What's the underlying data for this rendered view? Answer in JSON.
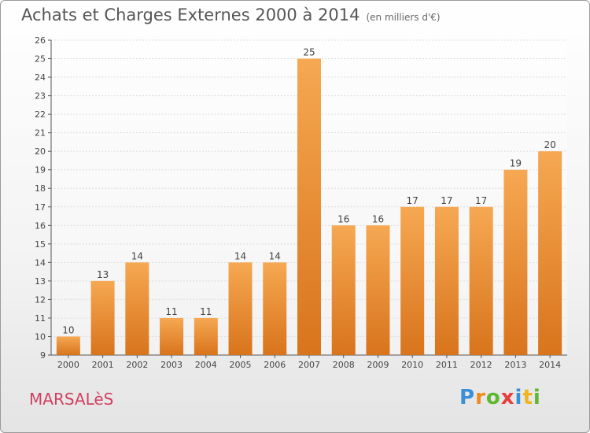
{
  "header": {
    "title": "Achats et Charges Externes 2000 à 2014",
    "subtitle": "(en milliers d'€)"
  },
  "footer": {
    "commune": "MARSALèS",
    "logo_letters": [
      "P",
      "r",
      "o",
      "x",
      "i",
      "t",
      "i"
    ],
    "logo_colors": [
      "#3a8fd6",
      "#f08a1c",
      "#5cb82f",
      "#e83c3c",
      "#3a8fd6",
      "#f0b41c",
      "#5cb82f"
    ]
  },
  "colors": {
    "bar_light": "#f6a852",
    "bar_dark": "#d8741c",
    "grid": "#dddddd",
    "axis": "#555555"
  },
  "chart_data": {
    "type": "bar",
    "title": "Achats et Charges Externes 2000 à 2014",
    "subtitle": "(en milliers d'€)",
    "categories": [
      "2000",
      "2001",
      "2002",
      "2003",
      "2004",
      "2005",
      "2006",
      "2007",
      "2008",
      "2009",
      "2010",
      "2011",
      "2012",
      "2013",
      "2014"
    ],
    "values": [
      10,
      13,
      14,
      11,
      11,
      14,
      14,
      25,
      16,
      16,
      17,
      17,
      17,
      19,
      20
    ],
    "ylim": [
      9,
      26
    ],
    "yticks": [
      9,
      10,
      11,
      12,
      13,
      14,
      15,
      16,
      17,
      18,
      19,
      20,
      21,
      22,
      23,
      24,
      25,
      26
    ],
    "grid": true
  }
}
